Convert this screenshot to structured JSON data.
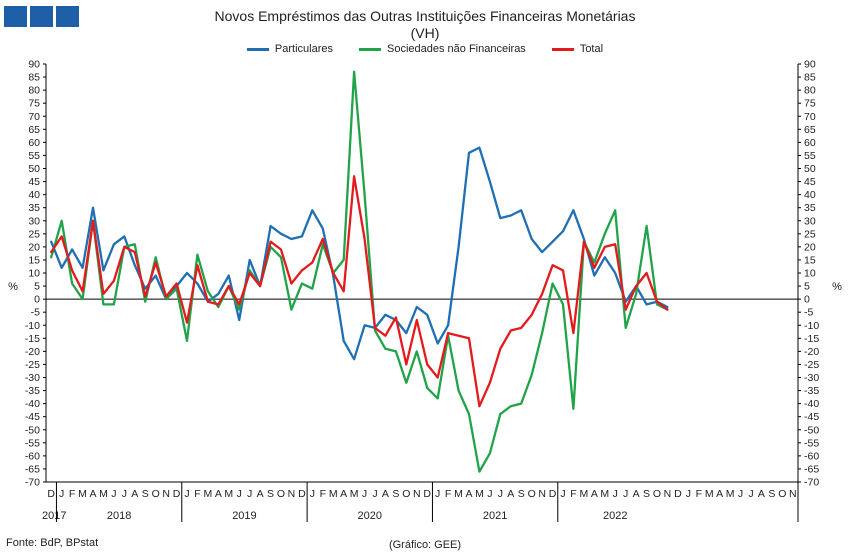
{
  "header": {
    "title": "Novos Empréstimos das Outras Instituições Financeiras Monetárias",
    "subtitle": "(VH)"
  },
  "footer": {
    "source": "Fonte: BdP, BPstat",
    "credit": "(Gráfico: GEE)"
  },
  "chart_data": {
    "type": "line",
    "title": "Novos Empréstimos das Outras Instituições Financeiras Monetárias",
    "subtitle": "(VH)",
    "ylabel": "%",
    "ylim": [
      -70,
      90
    ],
    "ytick_step": 5,
    "grid": false,
    "legend_position": "top",
    "month_labels": [
      "D",
      "J",
      "F",
      "M",
      "A",
      "M",
      "J",
      "J",
      "A",
      "S",
      "O",
      "N",
      "D",
      "J",
      "F",
      "M",
      "A",
      "M",
      "J",
      "J",
      "A",
      "S",
      "O",
      "N",
      "D",
      "J",
      "F",
      "M",
      "A",
      "M",
      "J",
      "J",
      "A",
      "S",
      "O",
      "N",
      "D",
      "J",
      "F",
      "M",
      "A",
      "M",
      "J",
      "J",
      "A",
      "S",
      "O",
      "N",
      "D",
      "J",
      "F",
      "M",
      "A",
      "M",
      "J",
      "J",
      "A",
      "S",
      "O",
      "N",
      "D",
      "J",
      "F",
      "M",
      "A",
      "M",
      "J",
      "J",
      "A",
      "S",
      "O",
      "N"
    ],
    "year_labels": [
      {
        "label": "2017",
        "start": 0,
        "end": 0
      },
      {
        "label": "2018",
        "start": 1,
        "end": 12
      },
      {
        "label": "2019",
        "start": 13,
        "end": 24
      },
      {
        "label": "2020",
        "start": 25,
        "end": 36
      },
      {
        "label": "2021",
        "start": 37,
        "end": 48
      },
      {
        "label": "2022",
        "start": 49,
        "end": 59
      }
    ],
    "series": [
      {
        "name": "Particulares",
        "color": "#1f6fb4",
        "values": [
          22,
          12,
          19,
          12,
          35,
          11,
          21,
          24,
          13,
          4,
          9,
          0,
          5,
          10,
          6,
          -1,
          2,
          9,
          -8,
          15,
          5,
          28,
          25,
          23,
          24,
          34,
          27,
          9,
          -16,
          -23,
          -10,
          -11,
          -6,
          -8,
          -13,
          -3,
          -6,
          -17,
          -10,
          20,
          56,
          58,
          45,
          31,
          32,
          34,
          23,
          18,
          22,
          26,
          34,
          23,
          9,
          16,
          10,
          -1,
          5,
          -2,
          -1,
          -3
        ]
      },
      {
        "name": "Sociedades não Financeiras",
        "color": "#21a34a",
        "values": [
          16,
          30,
          6,
          0,
          30,
          -2,
          -2,
          20,
          21,
          -1,
          16,
          0,
          4,
          -16,
          17,
          3,
          -3,
          5,
          -4,
          11,
          5,
          20,
          16,
          -4,
          6,
          4,
          21,
          10,
          15,
          87,
          40,
          -12,
          -19,
          -20,
          -32,
          -20,
          -34,
          -38,
          -14,
          -35,
          -44,
          -66,
          -59,
          -44,
          -41,
          -40,
          -29,
          -13,
          6,
          -2,
          -42,
          22,
          14,
          25,
          34,
          -11,
          2,
          28,
          -2,
          -4
        ]
      },
      {
        "name": "Total",
        "color": "#e41a1c",
        "values": [
          18,
          24,
          11,
          3,
          30,
          2,
          7,
          20,
          18,
          1,
          14,
          1,
          6,
          -9,
          13,
          -1,
          -2,
          5,
          -2,
          10,
          5,
          22,
          19,
          6,
          11,
          14,
          23,
          10,
          3,
          47,
          23,
          -11,
          -14,
          -7,
          -25,
          -8,
          -25,
          -30,
          -13,
          -14,
          -15,
          -41,
          -32,
          -19,
          -12,
          -11,
          -6,
          2,
          13,
          11,
          -13,
          22,
          12,
          20,
          21,
          -4,
          5,
          10,
          -1,
          -4
        ]
      }
    ]
  }
}
